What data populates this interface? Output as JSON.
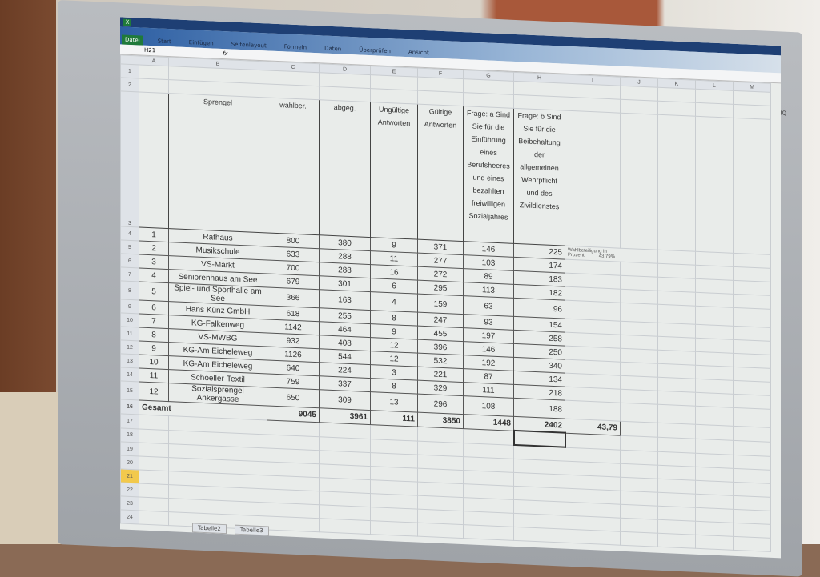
{
  "ribbon": {
    "tabs": [
      "Datei",
      "Start",
      "Einfügen",
      "Seitenlayout",
      "Formeln",
      "Daten",
      "Überprüfen",
      "Ansicht"
    ]
  },
  "formula_bar": {
    "name_box": "H21",
    "fx": "fx",
    "value": ""
  },
  "columns": [
    "A",
    "B",
    "C",
    "D",
    "E",
    "F",
    "G",
    "H",
    "I",
    "J",
    "K",
    "L",
    "M"
  ],
  "headers": {
    "b": "Sprengel",
    "c": "wahlber.",
    "d": "abgeg.",
    "e": "Ungültige Antworten",
    "f": "Gültige Antworten",
    "g": "Frage: a Sind Sie für die Einführung eines Berufsheeres und eines bezahlten freiwilligen Sozialjahres",
    "h": "Frage: b Sind Sie für die Beibehaltung der allgemeinen Wehrpflicht und des Zivildienstes"
  },
  "side_note": {
    "label": "Wahlbeteiligung in Prozent",
    "value": "43,79%"
  },
  "rows": [
    {
      "row": "4",
      "a": "1",
      "b": "Rathaus",
      "c": "800",
      "d": "380",
      "e": "9",
      "f": "371",
      "g": "146",
      "h": "225"
    },
    {
      "row": "5",
      "a": "2",
      "b": "Musikschule",
      "c": "633",
      "d": "288",
      "e": "11",
      "f": "277",
      "g": "103",
      "h": "174"
    },
    {
      "row": "6",
      "a": "3",
      "b": "VS-Markt",
      "c": "700",
      "d": "288",
      "e": "16",
      "f": "272",
      "g": "89",
      "h": "183"
    },
    {
      "row": "7",
      "a": "4",
      "b": "Seniorenhaus am See",
      "c": "679",
      "d": "301",
      "e": "6",
      "f": "295",
      "g": "113",
      "h": "182"
    },
    {
      "row": "8",
      "a": "5",
      "b": "Spiel- und Sporthalle am See",
      "c": "366",
      "d": "163",
      "e": "4",
      "f": "159",
      "g": "63",
      "h": "96"
    },
    {
      "row": "9",
      "a": "6",
      "b": "Hans Künz GmbH",
      "c": "618",
      "d": "255",
      "e": "8",
      "f": "247",
      "g": "93",
      "h": "154"
    },
    {
      "row": "10",
      "a": "7",
      "b": "KG-Falkenweg",
      "c": "1142",
      "d": "464",
      "e": "9",
      "f": "455",
      "g": "197",
      "h": "258"
    },
    {
      "row": "11",
      "a": "8",
      "b": "VS-MWBG",
      "c": "932",
      "d": "408",
      "e": "12",
      "f": "396",
      "g": "146",
      "h": "250"
    },
    {
      "row": "12",
      "a": "9",
      "b": "KG-Am Eicheleweg",
      "c": "1126",
      "d": "544",
      "e": "12",
      "f": "532",
      "g": "192",
      "h": "340"
    },
    {
      "row": "13",
      "a": "10",
      "b": "KG-Am Eicheleweg",
      "c": "640",
      "d": "224",
      "e": "3",
      "f": "221",
      "g": "87",
      "h": "134"
    },
    {
      "row": "14",
      "a": "11",
      "b": "Schoeller-Textil",
      "c": "759",
      "d": "337",
      "e": "8",
      "f": "329",
      "g": "111",
      "h": "218"
    },
    {
      "row": "15",
      "a": "12",
      "b": "Sozialsprengel Ankergasse",
      "c": "650",
      "d": "309",
      "e": "13",
      "f": "296",
      "g": "108",
      "h": "188"
    }
  ],
  "totals": {
    "row": "16",
    "label": "Gesamt",
    "c": "9045",
    "d": "3961",
    "e": "111",
    "f": "3850",
    "g": "1448",
    "h": "2402",
    "i": "43,79"
  },
  "empty_rows": [
    "17",
    "18",
    "19",
    "20",
    "21",
    "22",
    "23",
    "24"
  ],
  "selected_row": "21",
  "sheet_tabs": [
    "Tabelle2",
    "Tabelle3"
  ],
  "monitor_brand": "BENQ"
}
